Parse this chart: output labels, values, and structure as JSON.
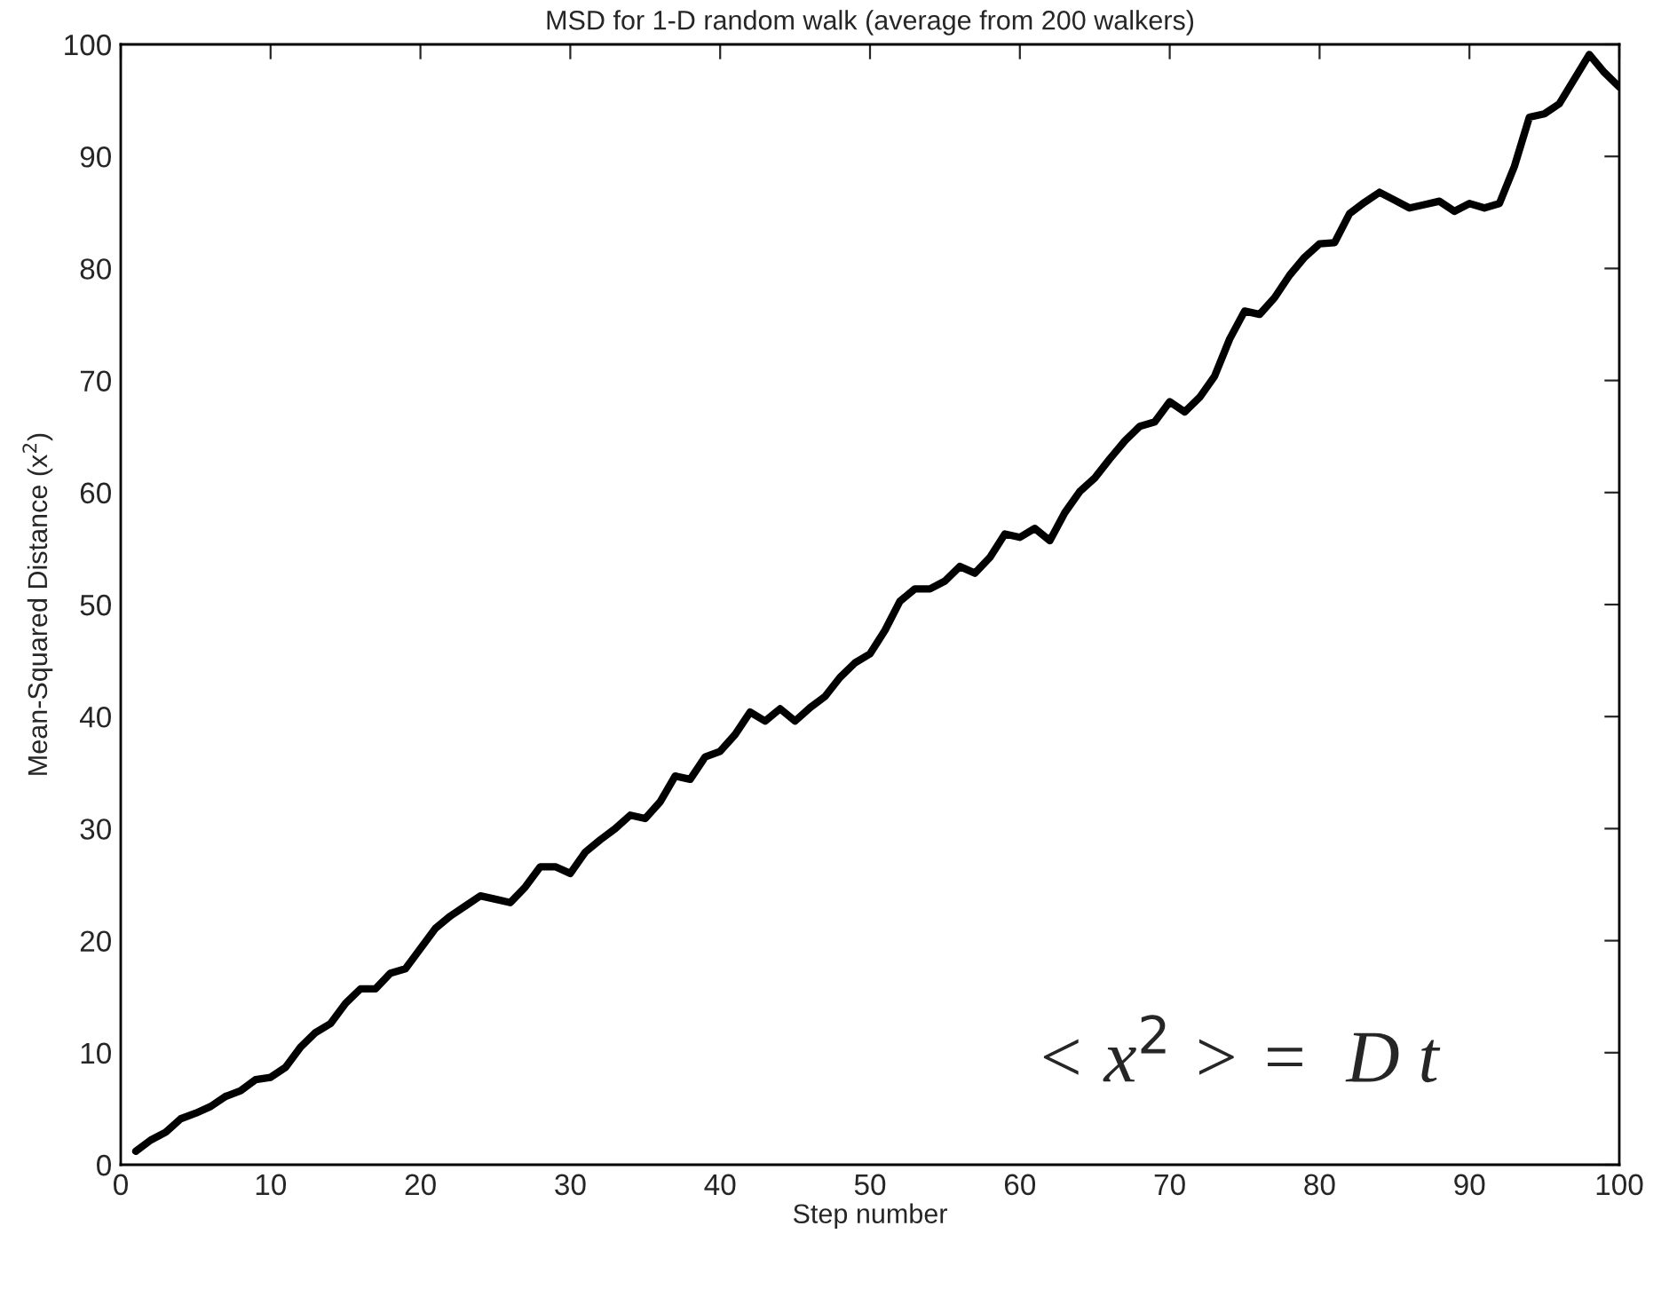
{
  "chart_data": {
    "type": "line",
    "title": "MSD for 1-D random walk (average from 200 walkers)",
    "xlabel": "Step number",
    "ylabel": "Mean-Squared Distance (x$^{2}$)",
    "x": [
      1,
      2,
      3,
      4,
      5,
      6,
      7,
      8,
      9,
      10,
      11,
      12,
      13,
      14,
      15,
      16,
      17,
      18,
      19,
      20,
      21,
      22,
      23,
      24,
      25,
      26,
      27,
      28,
      29,
      30,
      31,
      32,
      33,
      34,
      35,
      36,
      37,
      38,
      39,
      40,
      41,
      42,
      43,
      44,
      45,
      46,
      47,
      48,
      49,
      50,
      51,
      52,
      53,
      54,
      55,
      56,
      57,
      58,
      59,
      60,
      61,
      62,
      63,
      64,
      65,
      66,
      67,
      68,
      69,
      70,
      71,
      72,
      73,
      74,
      75,
      76,
      77,
      78,
      79,
      80,
      81,
      82,
      83,
      84,
      85,
      86,
      87,
      88,
      89,
      90,
      91,
      92,
      93,
      94,
      95,
      96,
      97,
      98,
      99,
      100
    ],
    "series": [
      {
        "color": "#000000",
        "values": [
          1.2,
          2.2,
          2.9,
          4.1,
          4.6,
          5.2,
          6.1,
          6.6,
          7.6,
          7.8,
          8.7,
          10.5,
          11.8,
          12.6,
          14.4,
          15.7,
          15.7,
          17.1,
          17.5,
          19.3,
          21.1,
          22.2,
          23.1,
          24.0,
          23.7,
          23.4,
          24.8,
          26.6,
          26.6,
          26.0,
          27.9,
          29.0,
          30.0,
          31.2,
          30.9,
          32.4,
          34.7,
          34.4,
          36.4,
          36.9,
          38.4,
          40.4,
          39.6,
          40.7,
          39.6,
          40.8,
          41.8,
          43.5,
          44.8,
          45.6,
          47.7,
          50.3,
          51.4,
          51.4,
          52.1,
          53.4,
          52.8,
          54.2,
          56.3,
          56.0,
          56.8,
          55.7,
          58.2,
          60.1,
          61.3,
          63.0,
          64.6,
          65.9,
          66.3,
          68.1,
          67.2,
          68.5,
          70.4,
          73.7,
          76.2,
          75.9,
          77.4,
          79.4,
          81.0,
          82.2,
          82.3,
          84.9,
          85.9,
          86.8,
          86.1,
          85.4,
          85.7,
          86.0,
          85.1,
          85.8,
          85.4,
          85.8,
          89.1,
          93.5,
          93.8,
          94.7,
          96.9,
          99.1,
          97.5,
          96.2
        ]
      }
    ],
    "xlim": [
      0,
      100
    ],
    "ylim": [
      0,
      100
    ],
    "xticks": [
      0,
      10,
      20,
      30,
      40,
      50,
      60,
      70,
      80,
      90,
      100
    ],
    "yticks": [
      0,
      10,
      20,
      30,
      40,
      50,
      60,
      70,
      80,
      90,
      100
    ],
    "annotations": [
      "< x$^{2}$ > =  D t"
    ],
    "grid": false,
    "legend": false,
    "marker": "none",
    "line_style": "solid"
  }
}
